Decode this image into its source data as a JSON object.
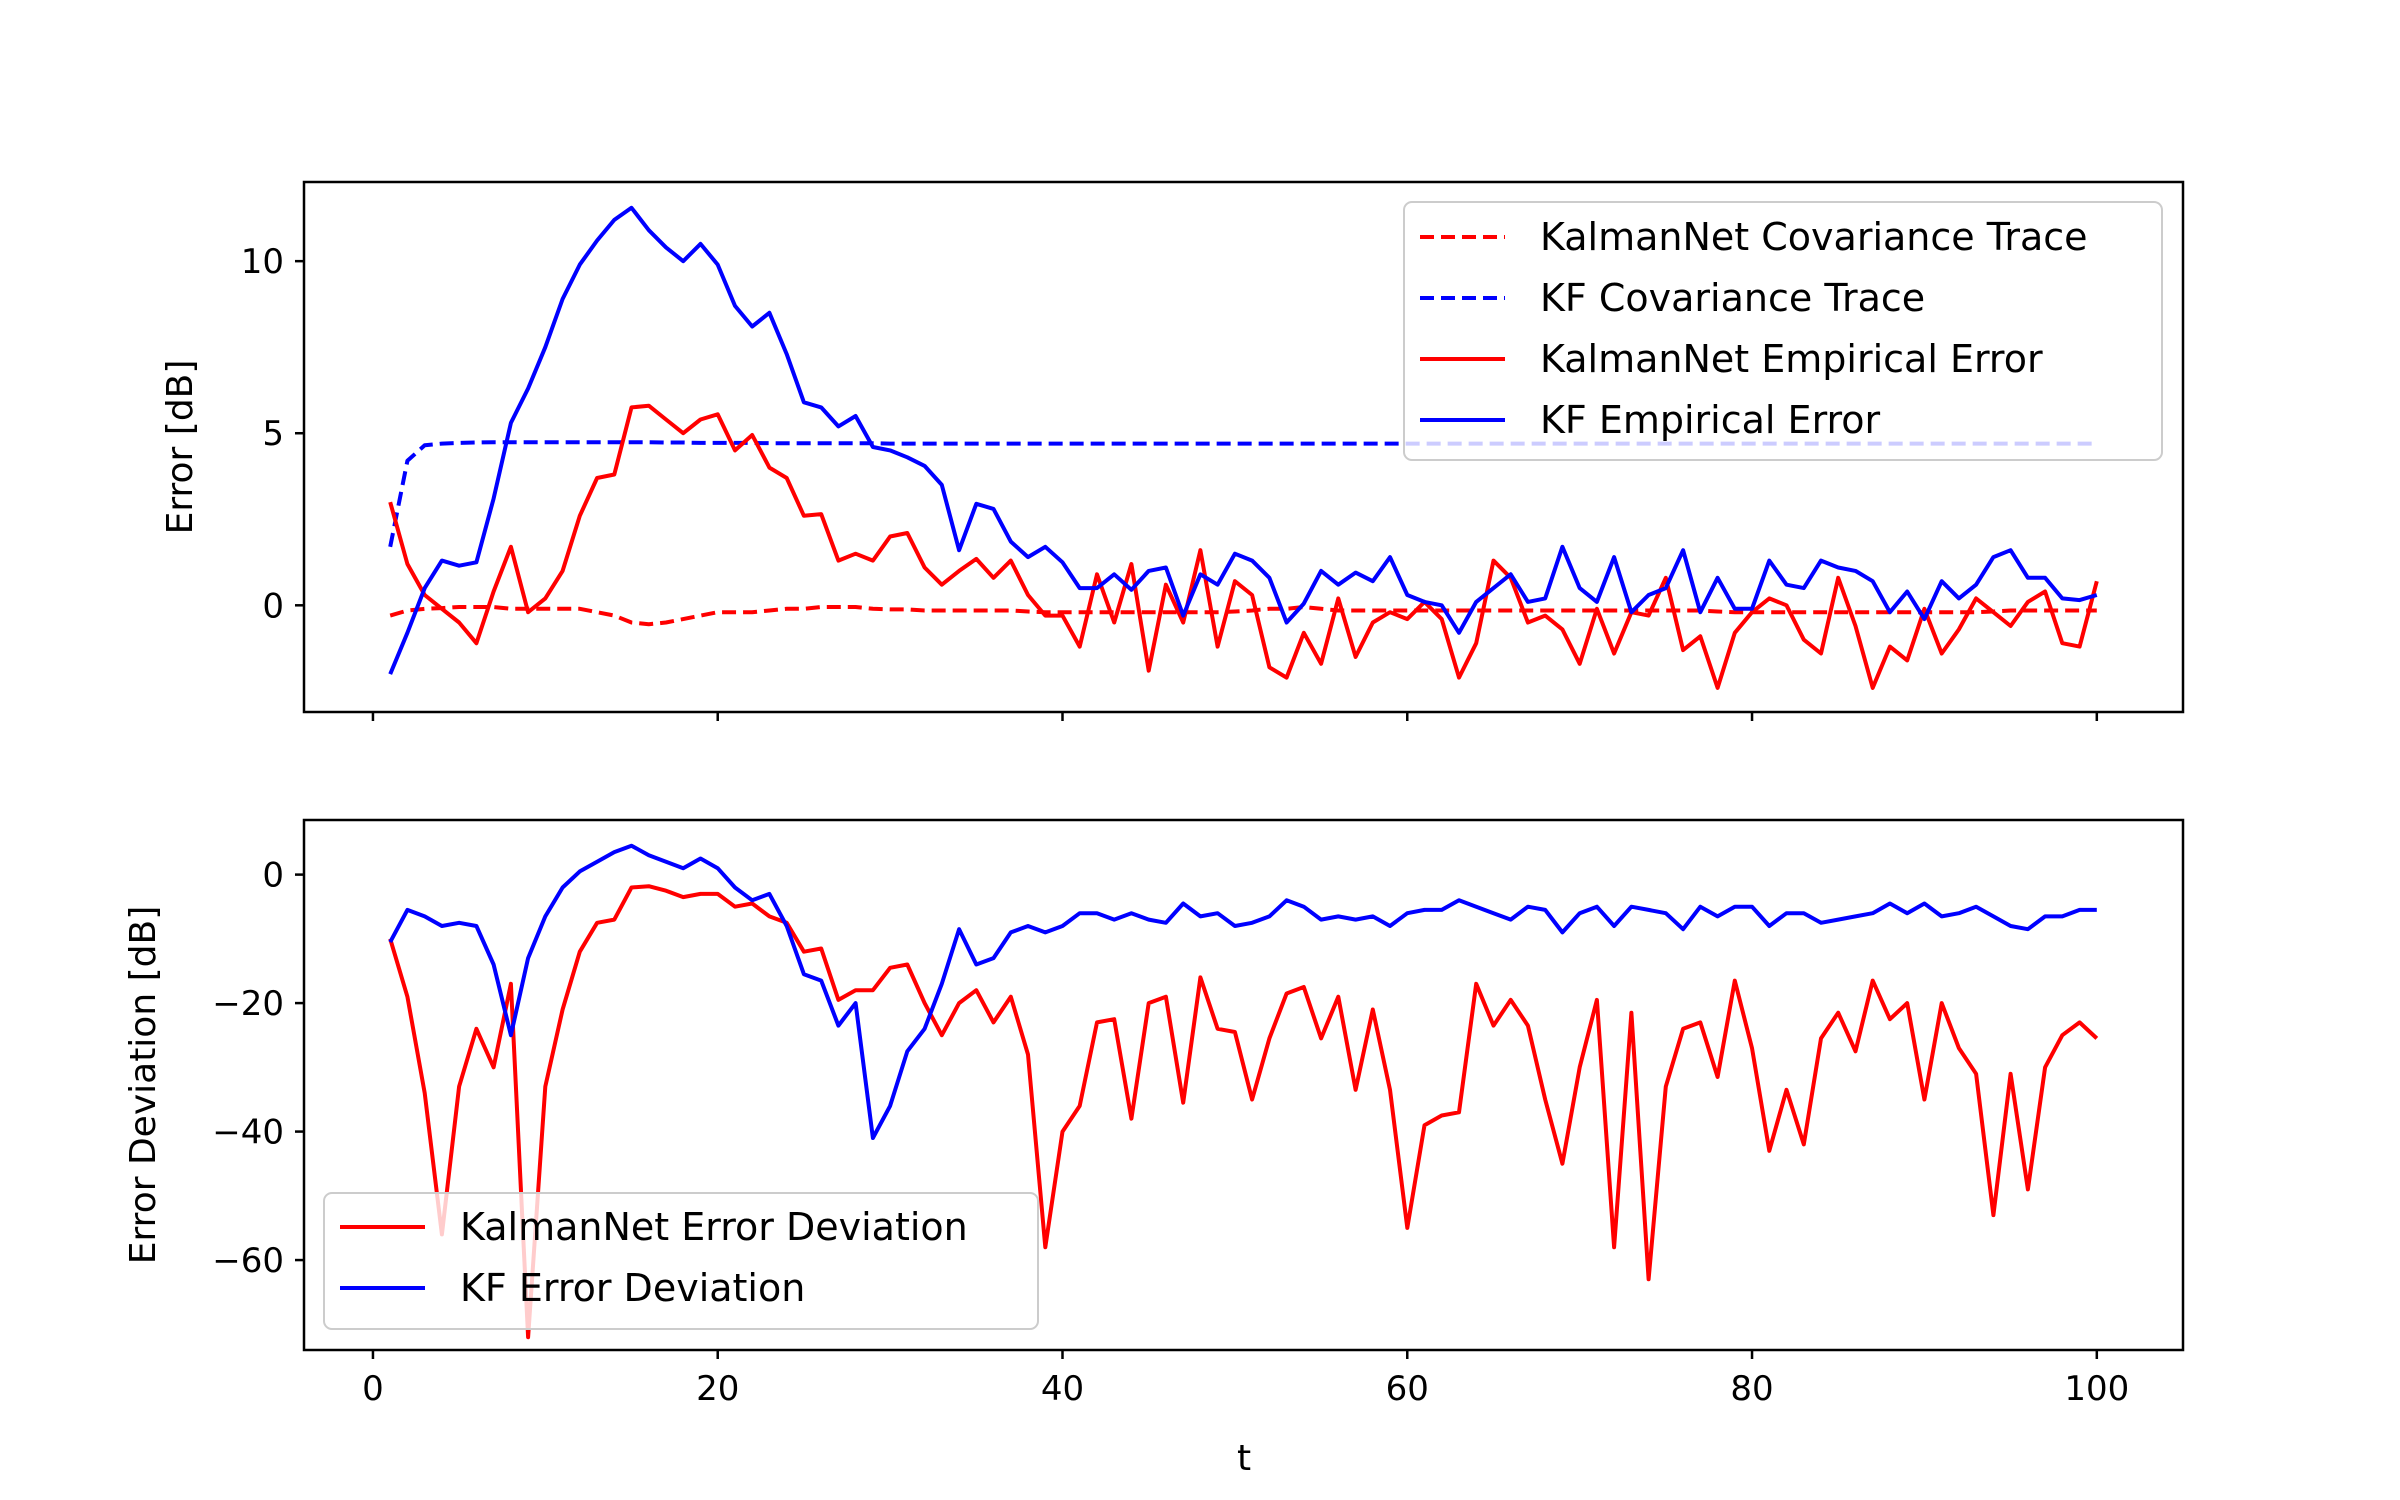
{
  "chart_data": [
    {
      "type": "line",
      "title": "",
      "xlabel": "",
      "ylabel": "Error [dB]",
      "xlim": [
        -4,
        105
      ],
      "ylim": [
        -3.1,
        12.3
      ],
      "xticks": [
        0,
        20,
        40,
        60,
        80,
        100
      ],
      "xtick_labels_shown": false,
      "yticks": [
        0,
        5,
        10
      ],
      "ytick_labels": [
        "0",
        "5",
        "10"
      ],
      "grid": false,
      "legend": {
        "position": "upper right",
        "entries": [
          "KalmanNet Covariance Trace",
          "KF Covariance Trace",
          "KalmanNet Empirical Error",
          "KF Empirical Error"
        ]
      },
      "series": [
        {
          "name": "KalmanNet Covariance Trace",
          "color": "#ff0000",
          "style": "dashed",
          "x_start": 1,
          "values": [
            -0.3,
            -0.15,
            -0.1,
            -0.08,
            -0.05,
            -0.05,
            -0.05,
            -0.1,
            -0.1,
            -0.1,
            -0.1,
            -0.1,
            -0.2,
            -0.3,
            -0.5,
            -0.55,
            -0.5,
            -0.4,
            -0.3,
            -0.2,
            -0.2,
            -0.2,
            -0.15,
            -0.1,
            -0.1,
            -0.05,
            -0.05,
            -0.05,
            -0.1,
            -0.12,
            -0.12,
            -0.15,
            -0.15,
            -0.15,
            -0.15,
            -0.15,
            -0.15,
            -0.18,
            -0.2,
            -0.2,
            -0.2,
            -0.2,
            -0.2,
            -0.2,
            -0.2,
            -0.2,
            -0.2,
            -0.2,
            -0.2,
            -0.18,
            -0.15,
            -0.1,
            -0.1,
            -0.05,
            -0.1,
            -0.15,
            -0.15,
            -0.15,
            -0.15,
            -0.15,
            -0.15,
            -0.15,
            -0.15,
            -0.15,
            -0.15,
            -0.15,
            -0.15,
            -0.15,
            -0.15,
            -0.15,
            -0.15,
            -0.15,
            -0.15,
            -0.15,
            -0.15,
            -0.15,
            -0.15,
            -0.18,
            -0.2,
            -0.2,
            -0.2,
            -0.2,
            -0.2,
            -0.2,
            -0.2,
            -0.2,
            -0.2,
            -0.2,
            -0.2,
            -0.2,
            -0.2,
            -0.2,
            -0.2,
            -0.18,
            -0.15,
            -0.15,
            -0.15,
            -0.15,
            -0.15,
            -0.15
          ]
        },
        {
          "name": "KF Covariance Trace",
          "color": "#0000ff",
          "style": "dashed",
          "x_start": 1,
          "values": [
            1.7,
            4.2,
            4.65,
            4.7,
            4.72,
            4.73,
            4.74,
            4.74,
            4.74,
            4.74,
            4.74,
            4.74,
            4.74,
            4.74,
            4.74,
            4.74,
            4.73,
            4.73,
            4.72,
            4.72,
            4.72,
            4.72,
            4.71,
            4.71,
            4.71,
            4.71,
            4.71,
            4.71,
            4.71,
            4.7,
            4.7,
            4.7,
            4.7,
            4.7,
            4.7,
            4.7,
            4.7,
            4.7,
            4.7,
            4.7,
            4.7,
            4.7,
            4.7,
            4.7,
            4.7,
            4.7,
            4.7,
            4.7,
            4.7,
            4.7,
            4.7,
            4.7,
            4.7,
            4.7,
            4.7,
            4.7,
            4.7,
            4.7,
            4.7,
            4.7,
            4.7,
            4.7,
            4.7,
            4.7,
            4.7,
            4.7,
            4.7,
            4.7,
            4.7,
            4.7,
            4.7,
            4.7,
            4.7,
            4.7,
            4.7,
            4.7,
            4.7,
            4.7,
            4.7,
            4.7,
            4.7,
            4.7,
            4.7,
            4.7,
            4.7,
            4.7,
            4.7,
            4.7,
            4.7,
            4.7,
            4.7,
            4.7,
            4.7,
            4.7,
            4.7,
            4.7,
            4.7,
            4.7,
            4.7,
            4.7
          ]
        },
        {
          "name": "KalmanNet Empirical Error",
          "color": "#ff0000",
          "style": "solid",
          "x_start": 1,
          "values": [
            3.0,
            1.2,
            0.3,
            -0.1,
            -0.5,
            -1.1,
            0.4,
            1.7,
            -0.2,
            0.2,
            1.0,
            2.6,
            3.7,
            3.8,
            5.75,
            5.8,
            5.4,
            5.0,
            5.4,
            5.55,
            4.5,
            4.95,
            4.0,
            3.7,
            2.6,
            2.65,
            1.3,
            1.5,
            1.3,
            2.0,
            2.1,
            1.1,
            0.6,
            1.0,
            1.35,
            0.8,
            1.3,
            0.3,
            -0.3,
            -0.3,
            -1.2,
            0.9,
            -0.5,
            1.2,
            -1.9,
            0.6,
            -0.5,
            1.6,
            -1.2,
            0.7,
            0.3,
            -1.8,
            -2.1,
            -0.8,
            -1.7,
            0.2,
            -1.5,
            -0.5,
            -0.2,
            -0.4,
            0.1,
            -0.4,
            -2.1,
            -1.1,
            1.3,
            0.8,
            -0.5,
            -0.3,
            -0.7,
            -1.7,
            -0.1,
            -1.4,
            -0.2,
            -0.3,
            0.8,
            -1.3,
            -0.9,
            -2.4,
            -0.8,
            -0.2,
            0.2,
            0.0,
            -1.0,
            -1.4,
            0.8,
            -0.6,
            -2.4,
            -1.2,
            -1.6,
            -0.1,
            -1.4,
            -0.7,
            0.2,
            -0.2,
            -0.6,
            0.1,
            0.4,
            -1.1,
            -1.2,
            0.7
          ]
        },
        {
          "name": "KF Empirical Error",
          "color": "#0000ff",
          "style": "solid",
          "x_start": 1,
          "values": [
            -2.0,
            -0.8,
            0.5,
            1.3,
            1.15,
            1.25,
            3.1,
            5.3,
            6.3,
            7.5,
            8.9,
            9.9,
            10.6,
            11.2,
            11.55,
            10.9,
            10.4,
            10.0,
            10.5,
            9.9,
            8.7,
            8.1,
            8.5,
            7.3,
            5.9,
            5.75,
            5.2,
            5.5,
            4.6,
            4.5,
            4.3,
            4.05,
            3.5,
            1.6,
            2.95,
            2.8,
            1.85,
            1.4,
            1.7,
            1.25,
            0.5,
            0.5,
            0.9,
            0.45,
            1.0,
            1.1,
            -0.3,
            0.9,
            0.6,
            1.5,
            1.3,
            0.8,
            -0.5,
            0.05,
            1.0,
            0.6,
            0.95,
            0.7,
            1.4,
            0.3,
            0.1,
            0.0,
            -0.8,
            0.1,
            0.5,
            0.9,
            0.1,
            0.2,
            1.7,
            0.5,
            0.1,
            1.4,
            -0.2,
            0.3,
            0.5,
            1.6,
            -0.2,
            0.8,
            -0.1,
            -0.1,
            1.3,
            0.6,
            0.5,
            1.3,
            1.1,
            1.0,
            0.7,
            -0.2,
            0.4,
            -0.4,
            0.7,
            0.2,
            0.6,
            1.4,
            1.6,
            0.8,
            0.8,
            0.2,
            0.15,
            0.3
          ]
        }
      ]
    },
    {
      "type": "line",
      "title": "",
      "xlabel": "t",
      "ylabel": "Error Deviation [dB]",
      "xlim": [
        -4,
        105
      ],
      "ylim": [
        -74,
        8.5
      ],
      "xticks": [
        0,
        20,
        40,
        60,
        80,
        100
      ],
      "xtick_labels": [
        "0",
        "20",
        "40",
        "60",
        "80",
        "100"
      ],
      "yticks": [
        0,
        -20,
        -40,
        -60
      ],
      "ytick_labels": [
        "0",
        "−20",
        "−40",
        "−60"
      ],
      "grid": false,
      "legend": {
        "position": "lower left",
        "entries": [
          "KalmanNet Error Deviation",
          "KF Error Deviation"
        ]
      },
      "series": [
        {
          "name": "KalmanNet Error Deviation",
          "color": "#ff0000",
          "style": "solid",
          "x_start": 1,
          "values": [
            -10,
            -19,
            -34,
            -56,
            -33,
            -24,
            -30,
            -17,
            -72,
            -33,
            -21,
            -12,
            -7.5,
            -7,
            -2,
            -1.8,
            -2.5,
            -3.5,
            -3,
            -3,
            -5,
            -4.5,
            -6.5,
            -7.5,
            -12,
            -11.5,
            -19.5,
            -18,
            -18,
            -14.5,
            -14,
            -20,
            -25,
            -20,
            -18,
            -23,
            -19,
            -28,
            -58,
            -40,
            -36,
            -23,
            -22.5,
            -38,
            -20,
            -19,
            -35.5,
            -16,
            -24,
            -24.5,
            -35,
            -25.5,
            -18.5,
            -17.5,
            -25.5,
            -19,
            -33.5,
            -21,
            -33.5,
            -55,
            -39,
            -37.5,
            -37,
            -17,
            -23.5,
            -19.5,
            -23.5,
            -35,
            -45,
            -30,
            -19.5,
            -58,
            -21.5,
            -63,
            -33,
            -24,
            -23,
            -31.5,
            -16.5,
            -27,
            -43,
            -33.5,
            -42,
            -25.5,
            -21.5,
            -27.5,
            -16.5,
            -22.5,
            -20,
            -35,
            -20,
            -27,
            -31,
            -53,
            -31,
            -49,
            -30,
            -25,
            -23,
            -25.5
          ]
        },
        {
          "name": "KF Error Deviation",
          "color": "#0000ff",
          "style": "solid",
          "x_start": 1,
          "values": [
            -10.5,
            -5.5,
            -6.5,
            -8,
            -7.5,
            -8,
            -14,
            -25,
            -13,
            -6.5,
            -2,
            0.5,
            2,
            3.5,
            4.5,
            3,
            2,
            1,
            2.5,
            1,
            -2,
            -4,
            -3,
            -8,
            -15.5,
            -16.5,
            -23.5,
            -20,
            -41,
            -36,
            -27.5,
            -24,
            -17,
            -8.5,
            -14,
            -13,
            -9,
            -8,
            -9,
            -8,
            -6,
            -6,
            -7,
            -6,
            -7,
            -7.5,
            -4.5,
            -6.5,
            -6,
            -8,
            -7.5,
            -6.5,
            -4,
            -5,
            -7,
            -6.5,
            -7,
            -6.5,
            -8,
            -6,
            -5.5,
            -5.5,
            -4,
            -5,
            -6,
            -7,
            -5,
            -5.5,
            -9,
            -6,
            -5,
            -8,
            -5,
            -5.5,
            -6,
            -8.5,
            -5,
            -6.5,
            -5,
            -5,
            -8,
            -6,
            -6,
            -7.5,
            -7,
            -6.5,
            -6,
            -4.5,
            -6,
            -4.5,
            -6.5,
            -6,
            -5,
            -6.5,
            -8,
            -8.5,
            -6.5,
            -6.5,
            -5.5,
            -5.5
          ]
        }
      ]
    }
  ]
}
